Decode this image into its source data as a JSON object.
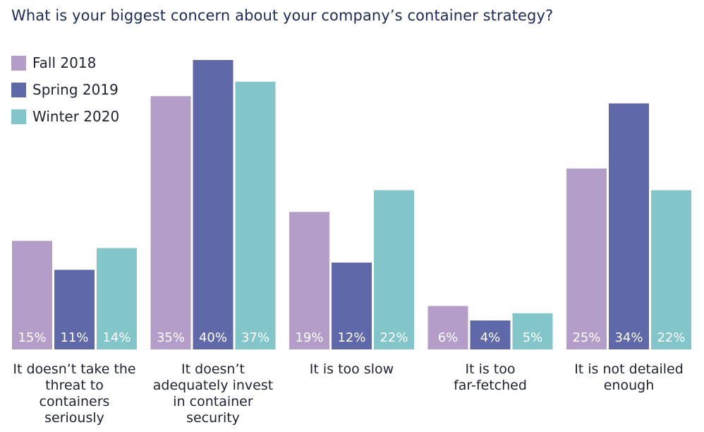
{
  "chart_data": {
    "type": "bar",
    "title": "What is your biggest concern about your company’s container strategy?",
    "categories": [
      "It doesn’t take the threat to containers seriously",
      "It doesn’t adequately invest in container security",
      "It is too slow",
      "It is too far-fetched",
      "It is not detailed enough"
    ],
    "category_lines": [
      [
        "It doesn’t take the",
        "threat to",
        "containers",
        "seriously"
      ],
      [
        "It doesn’t",
        "adequately invest",
        "in container",
        "security"
      ],
      [
        "It is too slow"
      ],
      [
        "It is too",
        "far-fetched"
      ],
      [
        "It is not detailed",
        "enough"
      ]
    ],
    "series": [
      {
        "name": "Fall 2018",
        "color": "#b49dc8",
        "values": [
          15,
          35,
          19,
          6,
          25
        ]
      },
      {
        "name": "Spring 2019",
        "color": "#5f69aa",
        "values": [
          11,
          40,
          12,
          4,
          34
        ]
      },
      {
        "name": "Winter 2020",
        "color": "#82c6c9",
        "values": [
          14,
          37,
          22,
          5,
          22
        ]
      }
    ],
    "value_suffix": "%",
    "ylim": [
      0,
      40
    ],
    "grid": false,
    "legend_position": "top-left",
    "xlabel": "",
    "ylabel": ""
  }
}
